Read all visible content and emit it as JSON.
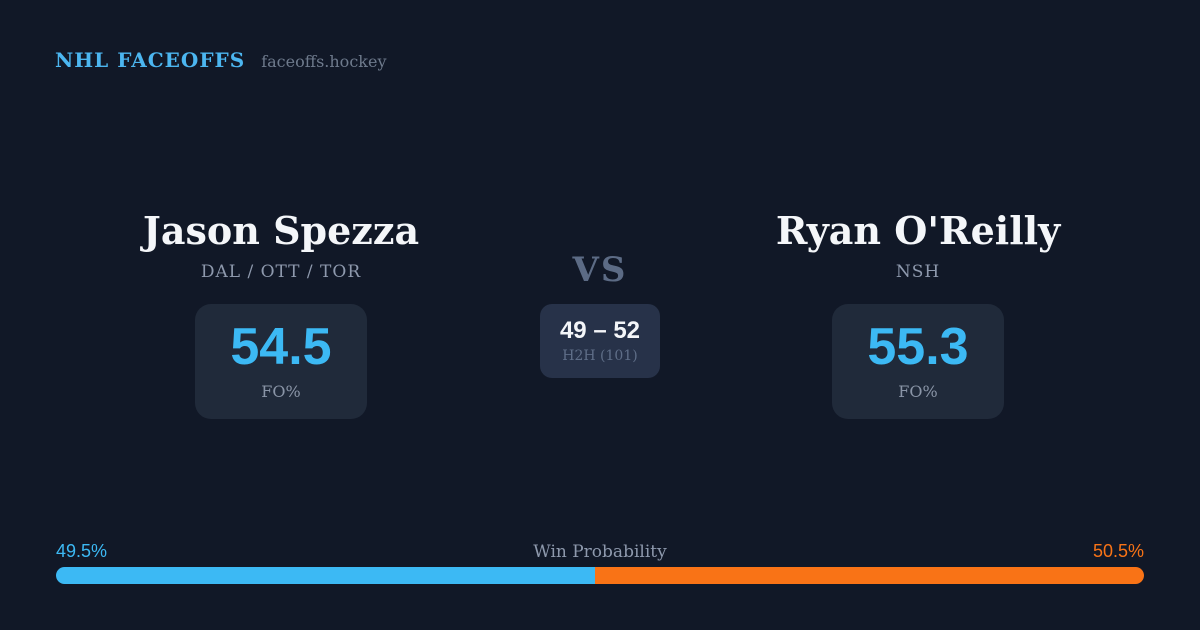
{
  "header": {
    "brand": "NHL FACEOFFS",
    "domain": "faceoffs.hockey"
  },
  "players": {
    "left": {
      "name": "Jason Spezza",
      "teams": "DAL / OTT / TOR",
      "fo_pct": "54.5",
      "fo_label": "FO%"
    },
    "right": {
      "name": "Ryan O'Reilly",
      "teams": "NSH",
      "fo_pct": "55.3",
      "fo_label": "FO%"
    }
  },
  "center": {
    "vs": "VS",
    "h2h_score": "49 – 52",
    "h2h_label": "H2H (101)"
  },
  "win_probability": {
    "title": "Win Probability",
    "left_label": "49.5%",
    "right_label": "50.5%",
    "left_value": 49.5,
    "right_value": 50.5
  },
  "colors": {
    "background": "#111827",
    "accent_blue": "#3cb9f4",
    "accent_orange": "#f97316",
    "brand_blue": "#4cb6f0",
    "card_bg": "#202a3a",
    "h2h_card_bg": "#273249",
    "text_white": "#f4f6f9",
    "text_slate": "#8e99ad"
  }
}
